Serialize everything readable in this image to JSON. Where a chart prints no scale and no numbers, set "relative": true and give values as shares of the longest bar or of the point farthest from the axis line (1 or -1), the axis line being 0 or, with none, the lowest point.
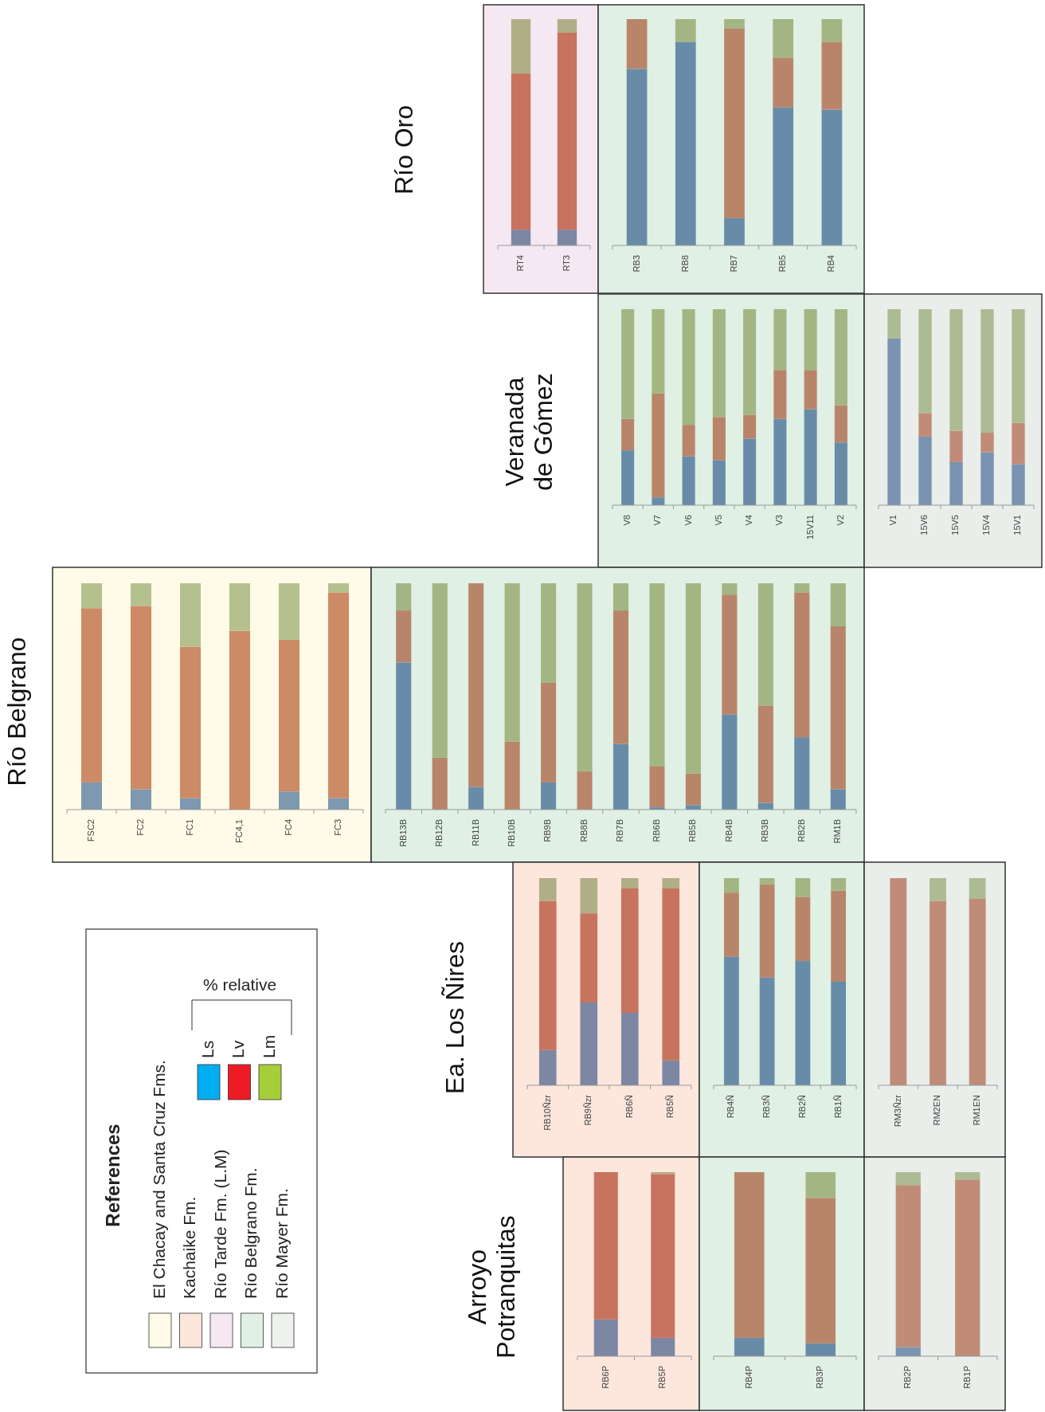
{
  "chart_data": [
    {
      "type": "bar",
      "stacked": true,
      "relative": true,
      "title": "Río Oro",
      "categories": [
        "RT4",
        "RT3"
      ],
      "series": [
        {
          "color": "#7d86a3",
          "values": [
            0.07,
            0.07
          ]
        },
        {
          "color": "#c8735e",
          "values": [
            0.69,
            0.87
          ]
        },
        {
          "color": "#b0ae86",
          "values": [
            0.24,
            0.06
          ]
        }
      ]
    },
    {
      "type": "bar",
      "stacked": true,
      "relative": true,
      "categories": [
        "RB3",
        "RB8",
        "RB7",
        "RB5",
        "RB4"
      ],
      "series": [
        {
          "color": "#688ca8",
          "values": [
            0.78,
            0.9,
            0.12,
            0.61,
            0.6
          ]
        },
        {
          "color": "#b8856a",
          "values": [
            0.22,
            0,
            0.84,
            0.22,
            0.3
          ]
        },
        {
          "color": "#a3b583",
          "values": [
            0,
            0.1,
            0.04,
            0.17,
            0.1
          ]
        }
      ]
    },
    {
      "type": "bar",
      "stacked": true,
      "relative": true,
      "title": "Veranada de Gómez",
      "categories": [
        "V8",
        "V7",
        "V6",
        "V5",
        "V4",
        "V3",
        "15V11",
        "V2"
      ],
      "series": [
        {
          "color": "#688ca8",
          "values": [
            0.28,
            0.04,
            0.25,
            0.23,
            0.34,
            0.44,
            0.49,
            0.32
          ]
        },
        {
          "color": "#b8856a",
          "values": [
            0.16,
            0.53,
            0.16,
            0.22,
            0.12,
            0.25,
            0.2,
            0.19
          ]
        },
        {
          "color": "#a3b583",
          "values": [
            0.56,
            0.43,
            0.59,
            0.55,
            0.54,
            0.31,
            0.31,
            0.49
          ]
        }
      ]
    },
    {
      "type": "bar",
      "stacked": true,
      "relative": true,
      "categories": [
        "V1",
        "15V6",
        "15V5",
        "15V4",
        "15V1"
      ],
      "series": [
        {
          "color": "#7a93b0",
          "values": [
            0.85,
            0.35,
            0.22,
            0.27,
            0.21
          ]
        },
        {
          "color": "#c08c78",
          "values": [
            0,
            0.12,
            0.16,
            0.1,
            0.21
          ]
        },
        {
          "color": "#adbb93",
          "values": [
            0.15,
            0.53,
            0.62,
            0.63,
            0.58
          ]
        }
      ]
    },
    {
      "type": "bar",
      "stacked": true,
      "relative": true,
      "title": "Río Belgrano",
      "categories": [
        "FSC2",
        "FC2",
        "FC1",
        "FC4,1",
        "FC4",
        "FC3"
      ],
      "series": [
        {
          "color": "#7e98b0",
          "values": [
            0.12,
            0.09,
            0.05,
            0,
            0.08,
            0.05
          ]
        },
        {
          "color": "#cc8a66",
          "values": [
            0.77,
            0.81,
            0.67,
            0.79,
            0.67,
            0.91
          ]
        },
        {
          "color": "#b5c08f",
          "values": [
            0.11,
            0.1,
            0.28,
            0.21,
            0.25,
            0.04
          ]
        }
      ]
    },
    {
      "type": "bar",
      "stacked": true,
      "relative": true,
      "categories": [
        "RB13B",
        "RB12B",
        "RB11B",
        "RB10B",
        "RB9B",
        "RB8B",
        "RB7B",
        "RB6B",
        "RB5B",
        "RB4B",
        "RB3B",
        "RB2B",
        "RM1B"
      ],
      "series": [
        {
          "color": "#688ca8",
          "values": [
            0.65,
            0,
            0.1,
            0,
            0.12,
            0,
            0.29,
            0.01,
            0.02,
            0.42,
            0.03,
            0.32,
            0.09
          ]
        },
        {
          "color": "#b8856a",
          "values": [
            0.23,
            0.23,
            0.9,
            0.3,
            0.44,
            0.17,
            0.59,
            0.18,
            0.14,
            0.53,
            0.43,
            0.64,
            0.72
          ]
        },
        {
          "color": "#a3b583",
          "values": [
            0.12,
            0.77,
            0,
            0.7,
            0.44,
            0.83,
            0.12,
            0.81,
            0.84,
            0.05,
            0.54,
            0.04,
            0.19
          ]
        }
      ]
    },
    {
      "type": "bar",
      "stacked": true,
      "relative": true,
      "title": "Ea. Los Ñires",
      "categories": [
        "RB10Ñzr",
        "RB9Ñzr",
        "RB6Ñ",
        "RB5Ñ"
      ],
      "series": [
        {
          "color": "#7d86a3",
          "values": [
            0.17,
            0.4,
            0.35,
            0.12
          ]
        },
        {
          "color": "#c8735e",
          "values": [
            0.72,
            0.43,
            0.6,
            0.83
          ]
        },
        {
          "color": "#b0ae86",
          "values": [
            0.11,
            0.17,
            0.05,
            0.05
          ]
        }
      ]
    },
    {
      "type": "bar",
      "stacked": true,
      "relative": true,
      "categories": [
        "RB4Ñ",
        "RB3Ñ",
        "RB2Ñ",
        "RB1Ñ"
      ],
      "series": [
        {
          "color": "#688ca8",
          "values": [
            0.62,
            0.52,
            0.6,
            0.5
          ]
        },
        {
          "color": "#b8856a",
          "values": [
            0.31,
            0.45,
            0.31,
            0.44
          ]
        },
        {
          "color": "#a3b583",
          "values": [
            0.07,
            0.03,
            0.09,
            0.06
          ]
        }
      ]
    },
    {
      "type": "bar",
      "stacked": true,
      "relative": true,
      "categories": [
        "RM3Ñzr",
        "RM2EN",
        "RM1EN"
      ],
      "series": [
        {
          "color": "#7a93b0",
          "values": [
            0,
            0,
            0
          ]
        },
        {
          "color": "#c08c78",
          "values": [
            1,
            0.89,
            0.9
          ]
        },
        {
          "color": "#adbb93",
          "values": [
            0,
            0.11,
            0.1
          ]
        }
      ]
    },
    {
      "type": "bar",
      "stacked": true,
      "relative": true,
      "title": "Arroyo Potranquitas",
      "categories": [
        "RB6P",
        "RB5P"
      ],
      "series": [
        {
          "color": "#7d86a3",
          "values": [
            0.2,
            0.1
          ]
        },
        {
          "color": "#c8735e",
          "values": [
            0.8,
            0.89
          ]
        },
        {
          "color": "#b0ae86",
          "values": [
            0,
            0.01
          ]
        }
      ]
    },
    {
      "type": "bar",
      "stacked": true,
      "relative": true,
      "categories": [
        "RB4P",
        "RB3P"
      ],
      "series": [
        {
          "color": "#688ca8",
          "values": [
            0.1,
            0.07
          ]
        },
        {
          "color": "#b8856a",
          "values": [
            0.9,
            0.79
          ]
        },
        {
          "color": "#a3b583",
          "values": [
            0,
            0.14
          ]
        }
      ]
    },
    {
      "type": "bar",
      "stacked": true,
      "relative": true,
      "categories": [
        "RB2P",
        "RB1P"
      ],
      "series": [
        {
          "color": "#7a93b0",
          "values": [
            0.05,
            0
          ]
        },
        {
          "color": "#c08c78",
          "values": [
            0.88,
            0.96
          ]
        },
        {
          "color": "#adbb93",
          "values": [
            0.07,
            0.04
          ]
        }
      ]
    },
    {
      "type": "other",
      "title": "References",
      "annotations": [
        "El Chacay and Santa Cruz Fms.",
        "Kachaike Fm.",
        "Río Tarde Fm. (L.M)",
        "Río Belgrano Fm.",
        "Río Mayer Fm.",
        "% relative",
        "Ls",
        "Lv",
        "Lm"
      ]
    }
  ]
}
